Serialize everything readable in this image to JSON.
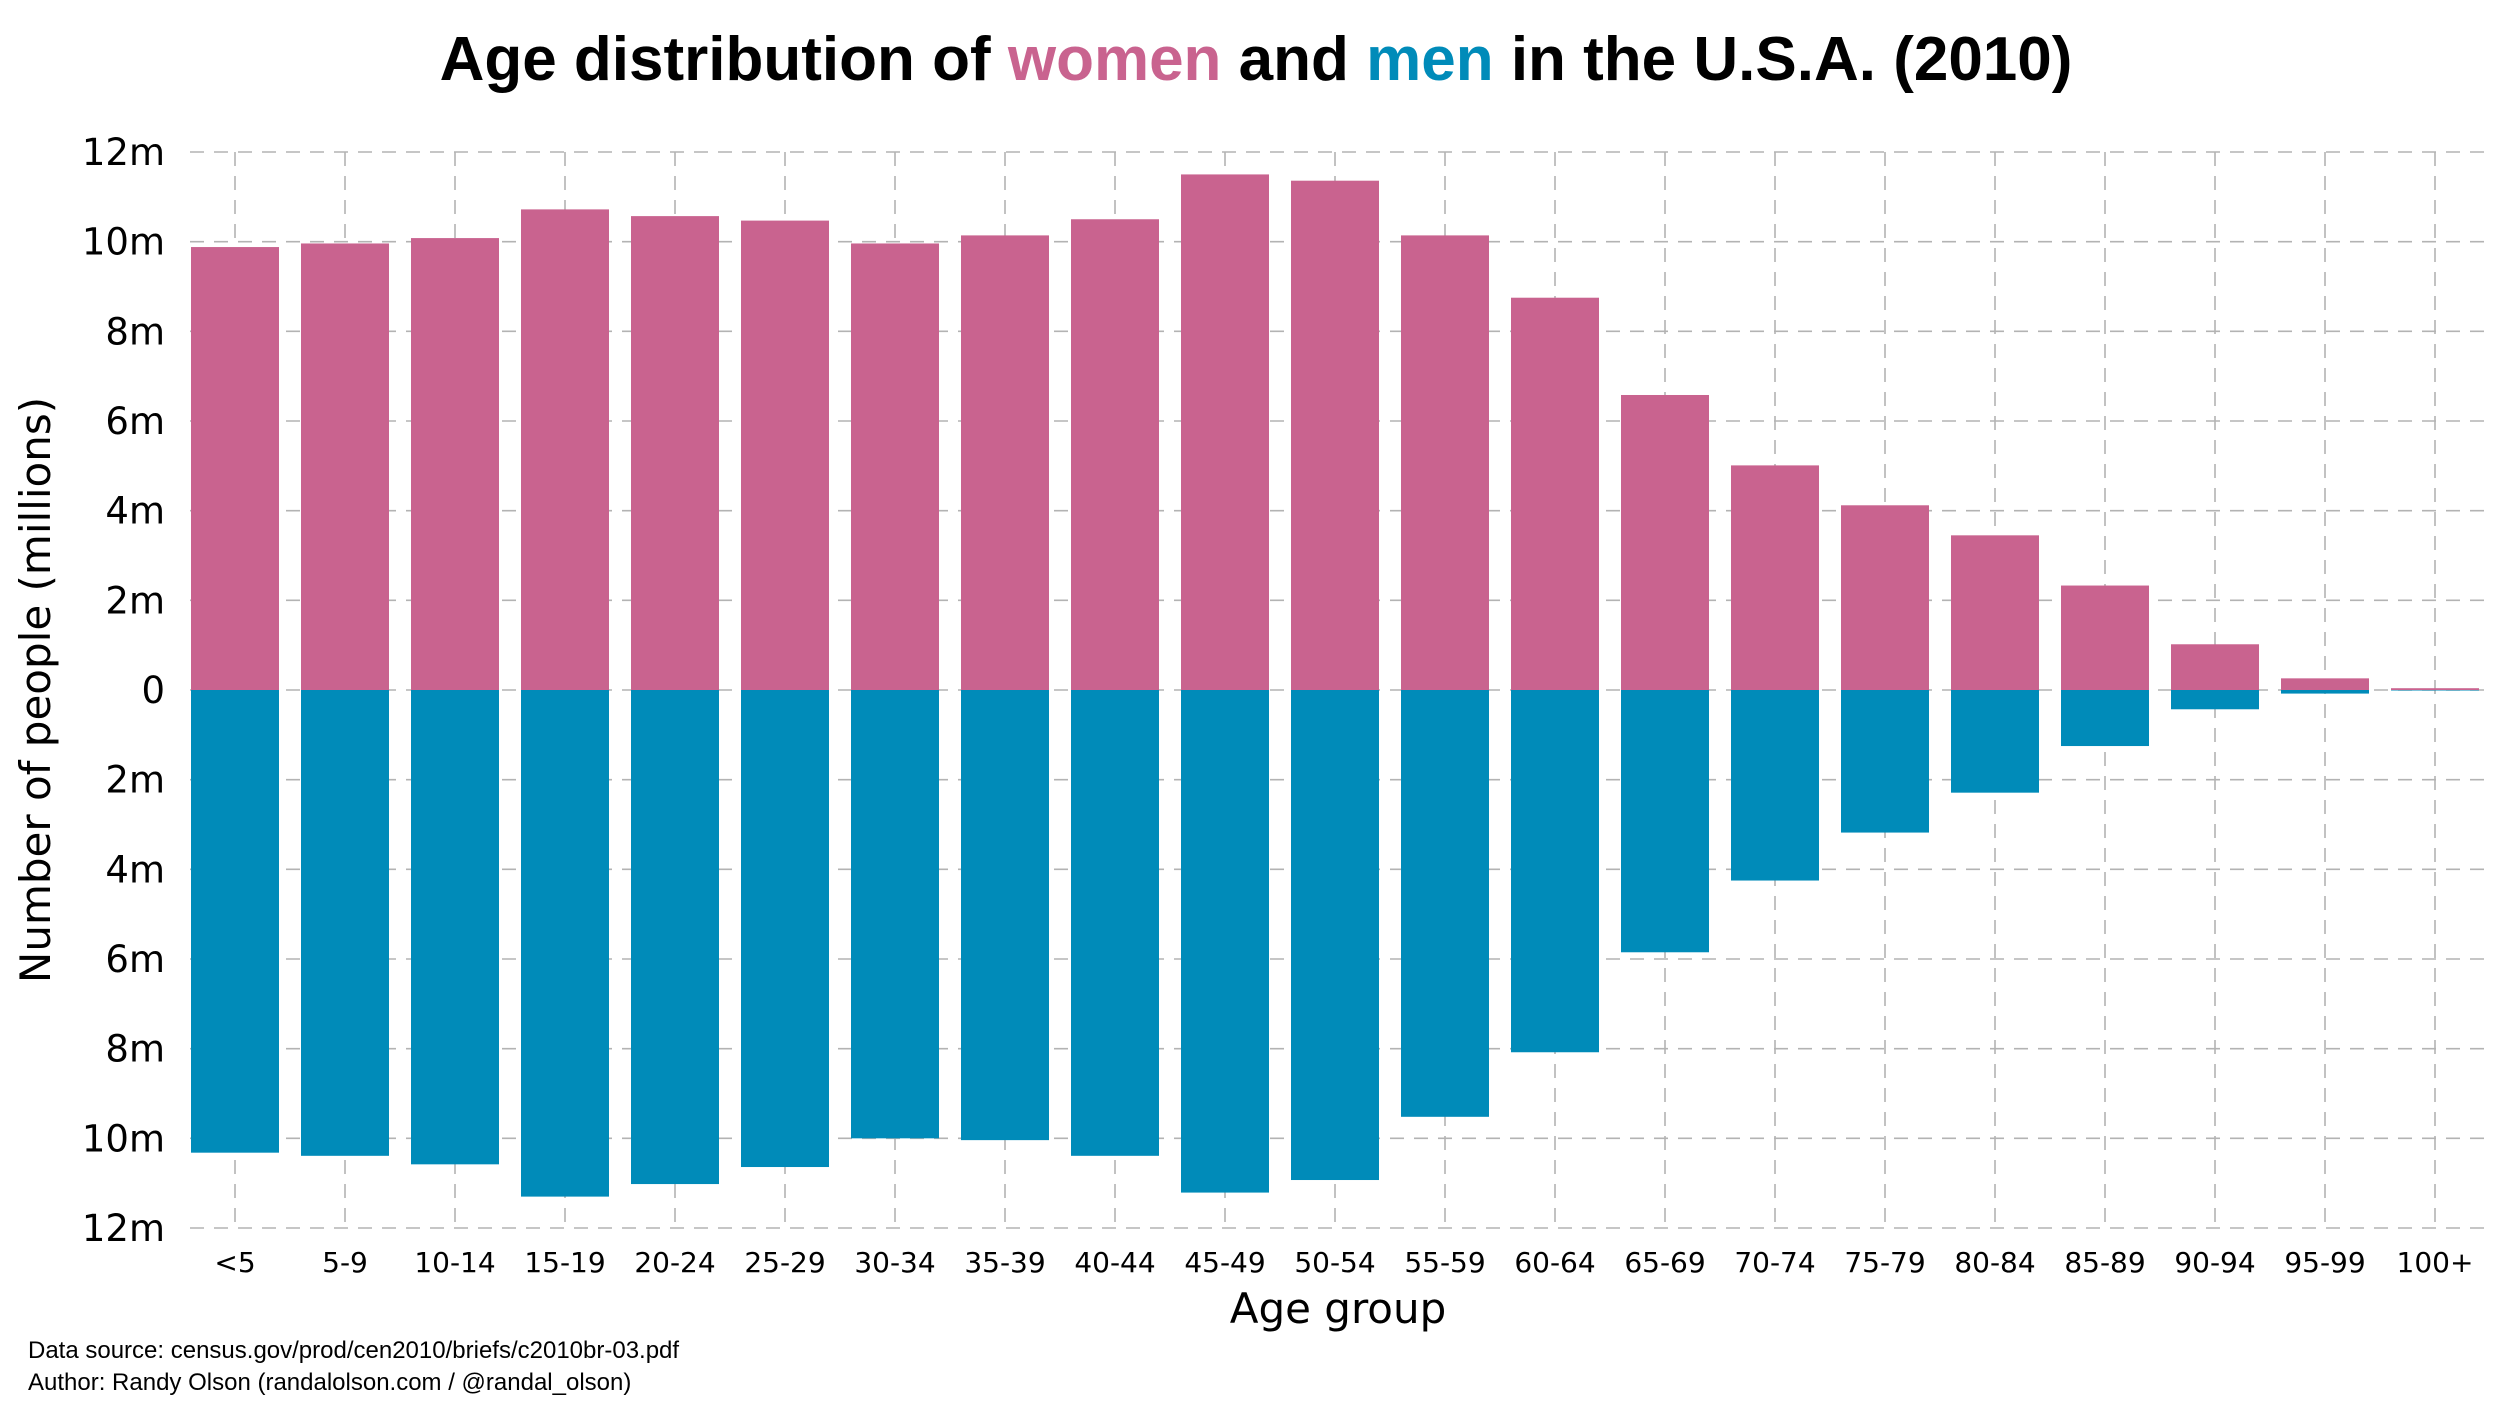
{
  "chart_data": {
    "type": "bar",
    "title": {
      "prefix": "Age distribution of ",
      "women_word": "women",
      "middle": " and ",
      "men_word": "men",
      "suffix": " in the U.S.A. (2010)"
    },
    "xlabel": "Age group",
    "ylabel": "Number of people (millions)",
    "categories": [
      "<5",
      "5-9",
      "10-14",
      "15-19",
      "20-24",
      "25-29",
      "30-34",
      "35-39",
      "40-44",
      "45-49",
      "50-54",
      "55-59",
      "60-64",
      "65-69",
      "70-74",
      "75-79",
      "80-84",
      "85-89",
      "90-94",
      "95-99",
      "100+"
    ],
    "series": [
      {
        "name": "women",
        "direction": "up",
        "color": "#c9638f",
        "values": [
          9.88,
          9.96,
          10.08,
          10.72,
          10.57,
          10.47,
          9.96,
          10.14,
          10.5,
          11.5,
          11.36,
          10.14,
          8.75,
          6.58,
          5.01,
          4.12,
          3.45,
          2.33,
          1.02,
          0.26,
          0.04
        ]
      },
      {
        "name": "men",
        "direction": "down",
        "color": "#008bb9",
        "values": [
          10.32,
          10.39,
          10.58,
          11.3,
          11.02,
          10.64,
          10.0,
          10.04,
          10.39,
          11.21,
          10.93,
          9.52,
          8.08,
          5.85,
          4.25,
          3.18,
          2.29,
          1.25,
          0.43,
          0.08,
          0.01
        ]
      }
    ],
    "ylim": [
      -12,
      12
    ],
    "yticks": [
      12,
      10,
      8,
      6,
      4,
      2,
      0,
      -2,
      -4,
      -6,
      -8,
      -10,
      -12
    ],
    "ytick_labels": [
      "12m",
      "10m",
      "8m",
      "6m",
      "4m",
      "2m",
      "0",
      "2m",
      "4m",
      "6m",
      "8m",
      "10m",
      "12m"
    ],
    "grid": true,
    "legend": "none (colored title words)"
  },
  "footer": {
    "source": "Data source: census.gov/prod/cen2010/briefs/c2010br-03.pdf",
    "author": "Author: Randy Olson (randalolson.com / @randal_olson)"
  }
}
